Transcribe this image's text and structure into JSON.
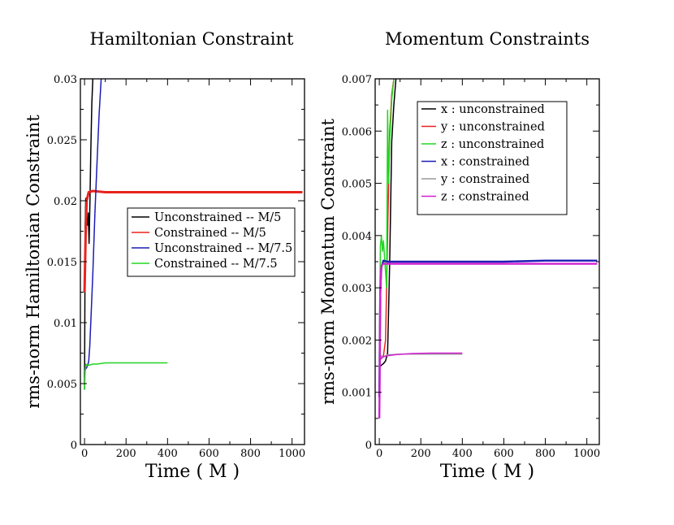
{
  "chart_data": [
    {
      "type": "line",
      "title": "Hamiltonian Constraint",
      "xlabel": "Time ( M )",
      "ylabel": "rms-norm Hamiltonian Constraint",
      "xlim": [
        -20,
        1060
      ],
      "ylim": [
        0,
        0.03
      ],
      "xticks": [
        0,
        200,
        400,
        600,
        800,
        1000
      ],
      "xtick_labels": [
        "0",
        "200",
        "400",
        "600",
        "800",
        "1000"
      ],
      "yticks": [
        0,
        0.005,
        0.01,
        0.015,
        0.02,
        0.025,
        0.03
      ],
      "ytick_labels": [
        "0",
        "0.005",
        "0.01",
        "0.015",
        "0.02",
        "0.025",
        "0.03"
      ],
      "grid": false,
      "legend_position": "middle-right",
      "series": [
        {
          "name": "Unconstrained -- M/5",
          "color": "#000000",
          "x": [
            0,
            3,
            6,
            10,
            14,
            18,
            22,
            26,
            30,
            35,
            40,
            45
          ],
          "y": [
            0.0045,
            0.018,
            0.0202,
            0.0186,
            0.018,
            0.019,
            0.0165,
            0.02,
            0.024,
            0.028,
            0.03,
            0.032
          ]
        },
        {
          "name": "Constrained -- M/5",
          "color": "#e8231d",
          "x": [
            0,
            5,
            10,
            20,
            40,
            100,
            300,
            600,
            900,
            1050
          ],
          "y": [
            0.0125,
            0.017,
            0.02,
            0.0207,
            0.0208,
            0.0207,
            0.0207,
            0.0207,
            0.0207,
            0.0207
          ]
        },
        {
          "name": "Unconstrained -- M/7.5",
          "color": "#1c1cb4",
          "x": [
            0,
            5,
            10,
            15,
            20,
            25,
            30,
            40,
            50,
            60,
            70,
            80,
            90
          ],
          "y": [
            0.006,
            0.0062,
            0.0063,
            0.0065,
            0.0068,
            0.008,
            0.01,
            0.014,
            0.019,
            0.023,
            0.027,
            0.03,
            0.032
          ]
        },
        {
          "name": "Constrained -- M/7.5",
          "color": "#22d522",
          "x": [
            0,
            3,
            6,
            10,
            20,
            40,
            60,
            100,
            200,
            300,
            400
          ],
          "y": [
            0.0045,
            0.006,
            0.0066,
            0.0065,
            0.0065,
            0.0066,
            0.0066,
            0.0067,
            0.0067,
            0.0067,
            0.0067
          ]
        }
      ]
    },
    {
      "type": "line",
      "title": "Momentum Constraints",
      "xlabel": "Time ( M )",
      "ylabel": "rms-norm Momentum Constraint",
      "xlim": [
        -20,
        1060
      ],
      "ylim": [
        0,
        0.007
      ],
      "xticks": [
        0,
        200,
        400,
        600,
        800,
        1000
      ],
      "xtick_labels": [
        "0",
        "200",
        "400",
        "600",
        "800",
        "1000"
      ],
      "yticks": [
        0,
        0.001,
        0.002,
        0.003,
        0.004,
        0.005,
        0.006,
        0.007
      ],
      "ytick_labels": [
        "0",
        "0.001",
        "0.002",
        "0.003",
        "0.004",
        "0.005",
        "0.006",
        "0.007"
      ],
      "grid": false,
      "legend_position": "top-right",
      "series": [
        {
          "name": "x : unconstrained",
          "color": "#000000",
          "x": [
            0,
            5,
            10,
            20,
            30,
            40,
            50,
            60,
            70,
            80,
            100,
            150,
            200,
            300,
            400
          ],
          "y": [
            0.0015,
            0.0015,
            0.00152,
            0.00155,
            0.0016,
            0.00175,
            0.0035,
            0.0058,
            0.0065,
            0.007,
            0.0072,
            0.0072,
            0.0072,
            0.0072,
            0.0072
          ]
        },
        {
          "name": "y : unconstrained",
          "color": "#e8231d",
          "x": [
            0,
            10,
            20,
            30,
            40,
            50,
            60,
            70,
            80
          ],
          "y": [
            0.0016,
            0.00165,
            0.0017,
            0.002,
            0.004,
            0.006,
            0.0067,
            0.007,
            0.0072
          ]
        },
        {
          "name": "z : unconstrained",
          "color": "#22d522",
          "x": [
            0,
            5,
            10,
            15,
            20,
            25,
            30,
            35,
            40,
            45,
            50,
            55,
            60,
            65,
            70,
            80
          ],
          "y": [
            0.0016,
            0.0038,
            0.004,
            0.0037,
            0.0039,
            0.0036,
            0.0033,
            0.003,
            0.0064,
            0.005,
            0.0058,
            0.0062,
            0.0066,
            0.0068,
            0.007,
            0.0072
          ]
        },
        {
          "name": "x : constrained",
          "color": "#1c1cb4",
          "x": [
            0,
            5,
            10,
            20,
            40,
            100,
            200,
            400,
            600,
            800,
            1050
          ],
          "y": [
            0.0009,
            0.003,
            0.0034,
            0.00352,
            0.0035,
            0.0035,
            0.0035,
            0.0035,
            0.0035,
            0.00352,
            0.00352
          ]
        },
        {
          "name": "y : constrained",
          "color": "#999999",
          "x": [
            0,
            10,
            20,
            30,
            40,
            60,
            100,
            200,
            300,
            400
          ],
          "y": [
            0.0016,
            0.0017,
            0.00168,
            0.0017,
            0.00172,
            0.00172,
            0.00173,
            0.00173,
            0.00173,
            0.00173
          ]
        },
        {
          "name": "z : constrained",
          "color": "#d21fd2",
          "x": [
            0,
            2,
            4,
            6,
            8,
            10,
            15,
            20,
            40,
            100,
            400,
            700,
            1050
          ],
          "y": [
            0.0005,
            0.0012,
            0.0028,
            0.003,
            0.0033,
            0.0034,
            0.00345,
            0.00346,
            0.00346,
            0.00346,
            0.00346,
            0.00346,
            0.00346
          ]
        },
        {
          "name": "",
          "color": "#d21fd2",
          "x": [
            10,
            20,
            40,
            80,
            150,
            250,
            400
          ],
          "y": [
            0.00165,
            0.00168,
            0.0017,
            0.00172,
            0.00174,
            0.00175,
            0.00175
          ]
        }
      ]
    }
  ]
}
